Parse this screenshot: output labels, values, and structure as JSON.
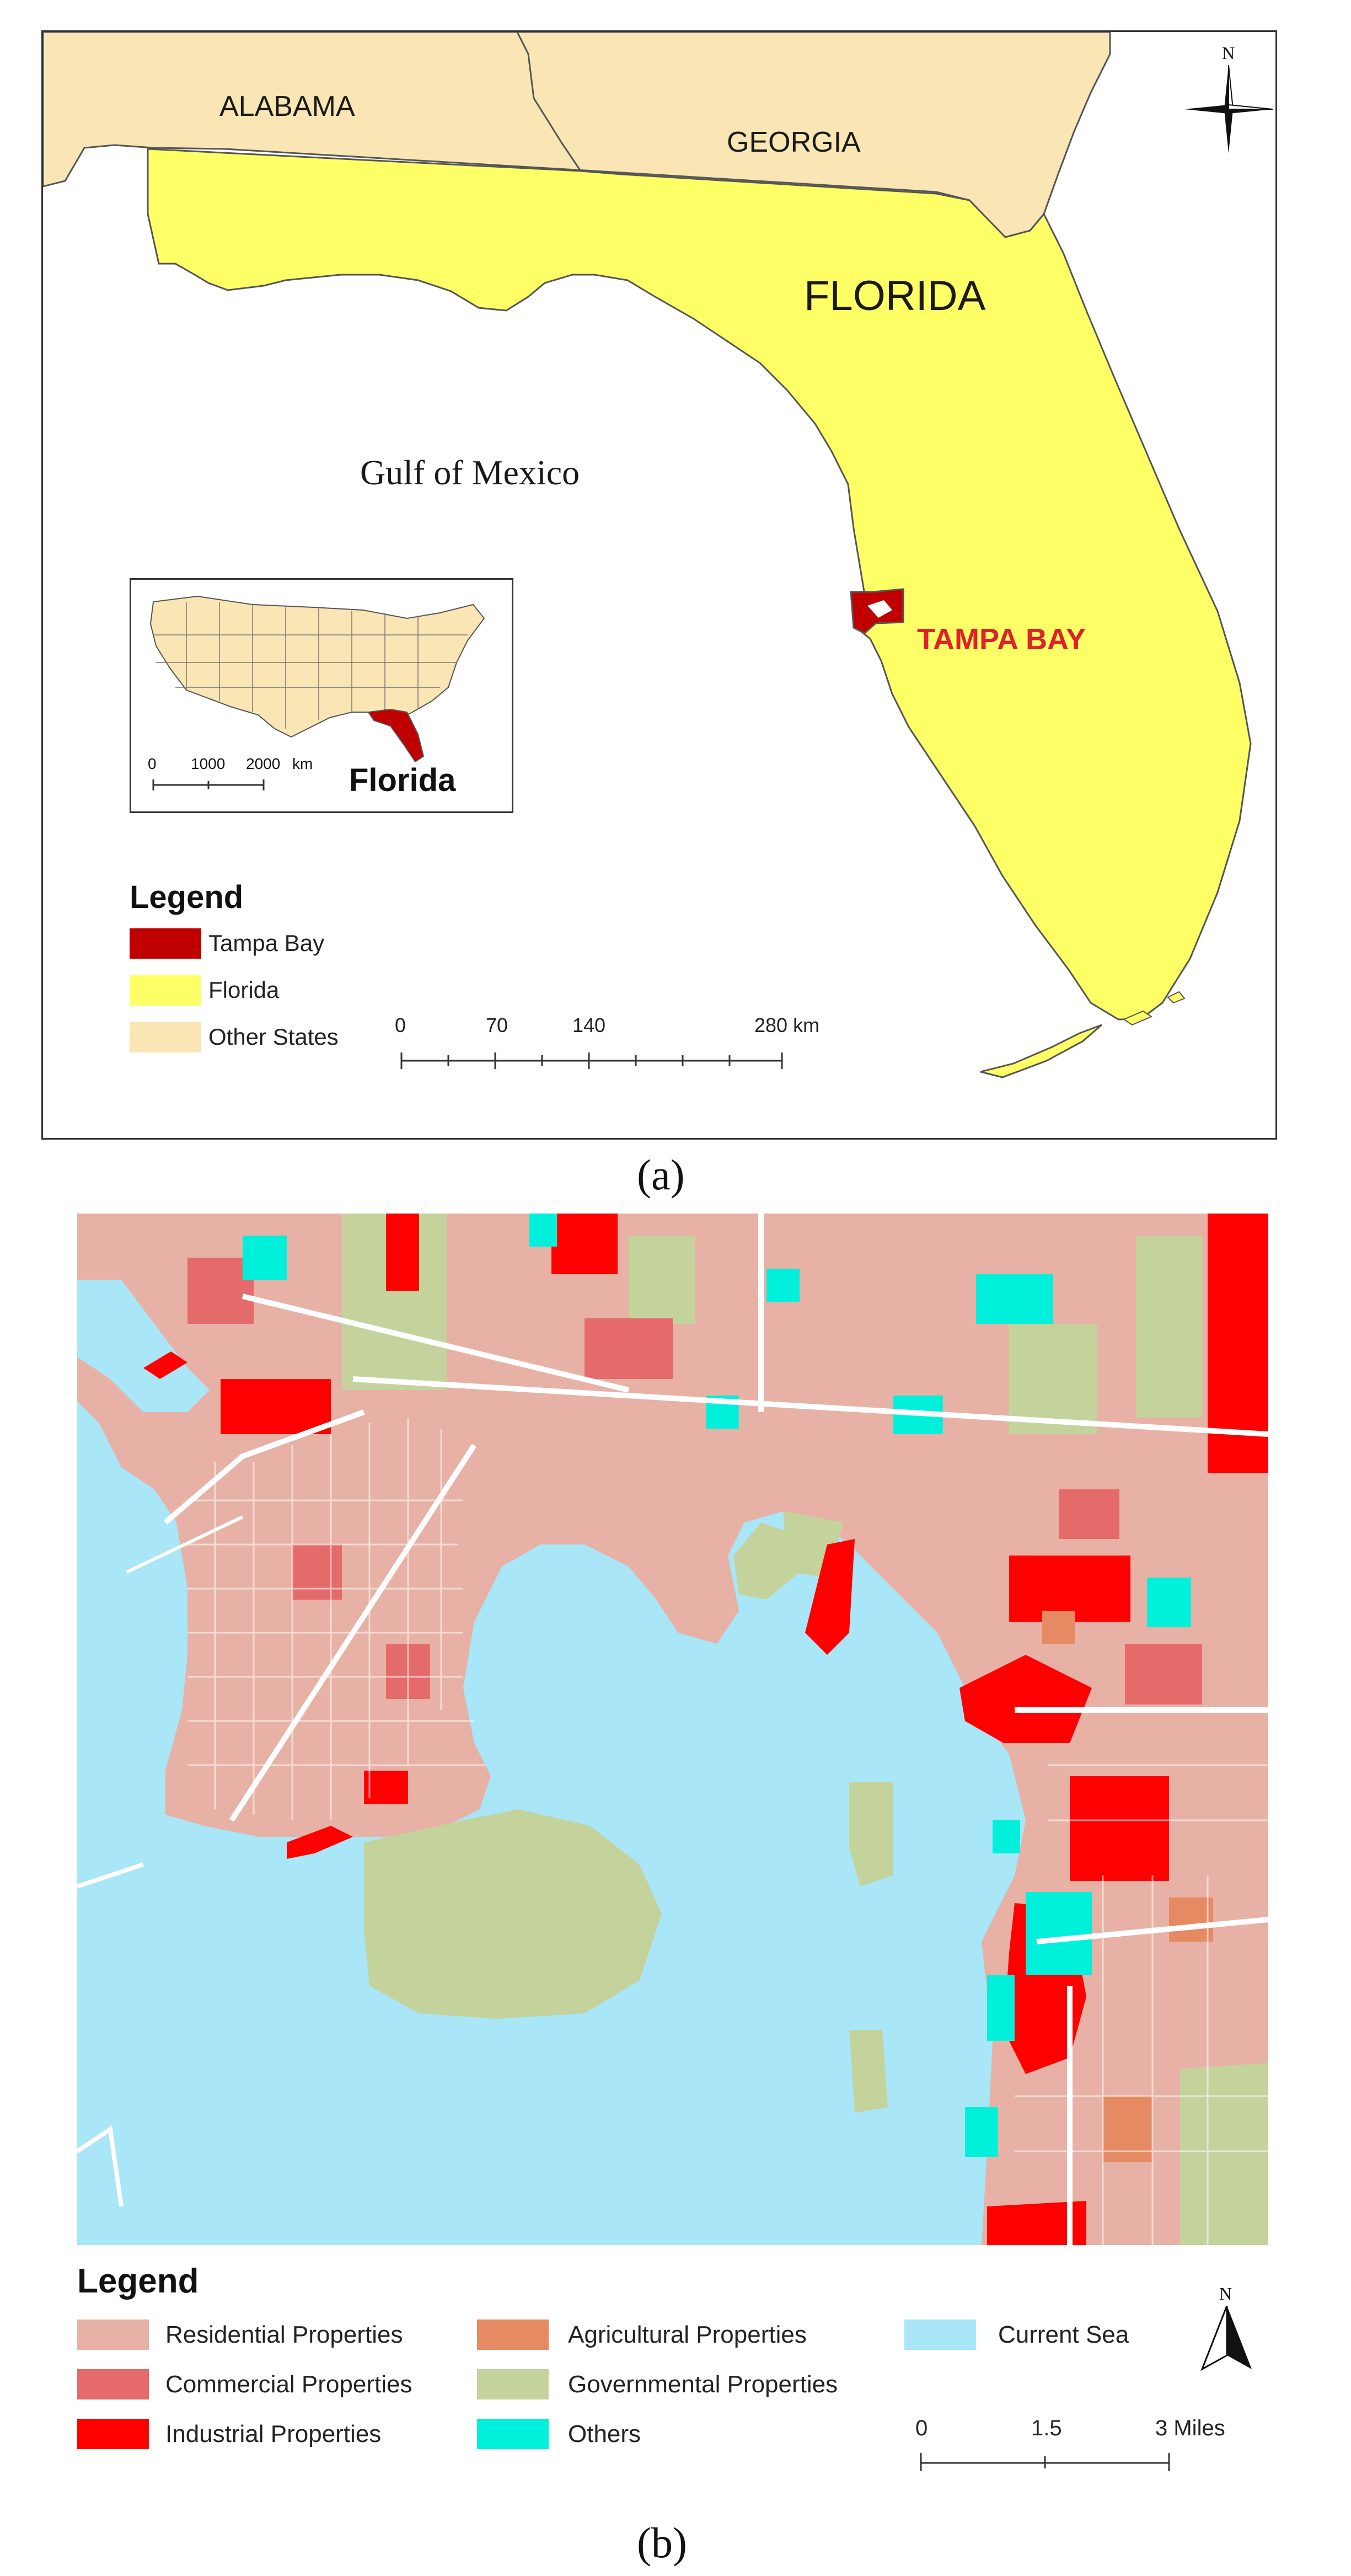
{
  "panel_a": {
    "caption": "(a)",
    "labels": {
      "alabama": "ALABAMA",
      "georgia": "GEORGIA",
      "florida": "FLORIDA",
      "gulf": "Gulf of Mexico",
      "tampa": "TAMPA BAY"
    },
    "compass": {
      "north": "N"
    },
    "inset": {
      "label": "Florida",
      "scale": {
        "ticks": [
          "0",
          "1000",
          "2000"
        ],
        "unit": "km"
      }
    },
    "legend": {
      "title": "Legend",
      "items": [
        {
          "label": "Tampa Bay",
          "color": "#c00000"
        },
        {
          "label": "Florida",
          "color": "#ffff66"
        },
        {
          "label": "Other States",
          "color": "#fae6b4"
        }
      ]
    },
    "scale_bar": {
      "ticks": [
        "0",
        "70",
        "140",
        "280 km"
      ]
    },
    "colors": {
      "water": "#ffffff",
      "florida": "#ffff66",
      "other": "#fae6b4",
      "tampa": "#c00000",
      "border": "#555555"
    }
  },
  "panel_b": {
    "caption": "(b)",
    "legend": {
      "title": "Legend",
      "items": [
        {
          "label": "Residential Properties",
          "color": "#e8b1a5"
        },
        {
          "label": "Commercial Properties",
          "color": "#e56a6a"
        },
        {
          "label": "Industrial Properties",
          "color": "#ff0000"
        },
        {
          "label": "Agricultural Properties",
          "color": "#e58a62"
        },
        {
          "label": "Governmental Properties",
          "color": "#c4d39c"
        },
        {
          "label": "Others",
          "color": "#00f0dc"
        },
        {
          "label": "Current Sea",
          "color": "#a9e6f8"
        }
      ]
    },
    "compass": {
      "north": "N"
    },
    "scale_bar": {
      "ticks": [
        "0",
        "1.5",
        "3 Miles"
      ]
    },
    "colors": {
      "sea": "#a9e6f8",
      "residential": "#e8b1a5",
      "commercial": "#e56a6a",
      "industrial": "#ff0000",
      "agricultural": "#e58a62",
      "governmental": "#c4d39c",
      "others": "#00f0dc",
      "road": "#ffffff"
    }
  }
}
